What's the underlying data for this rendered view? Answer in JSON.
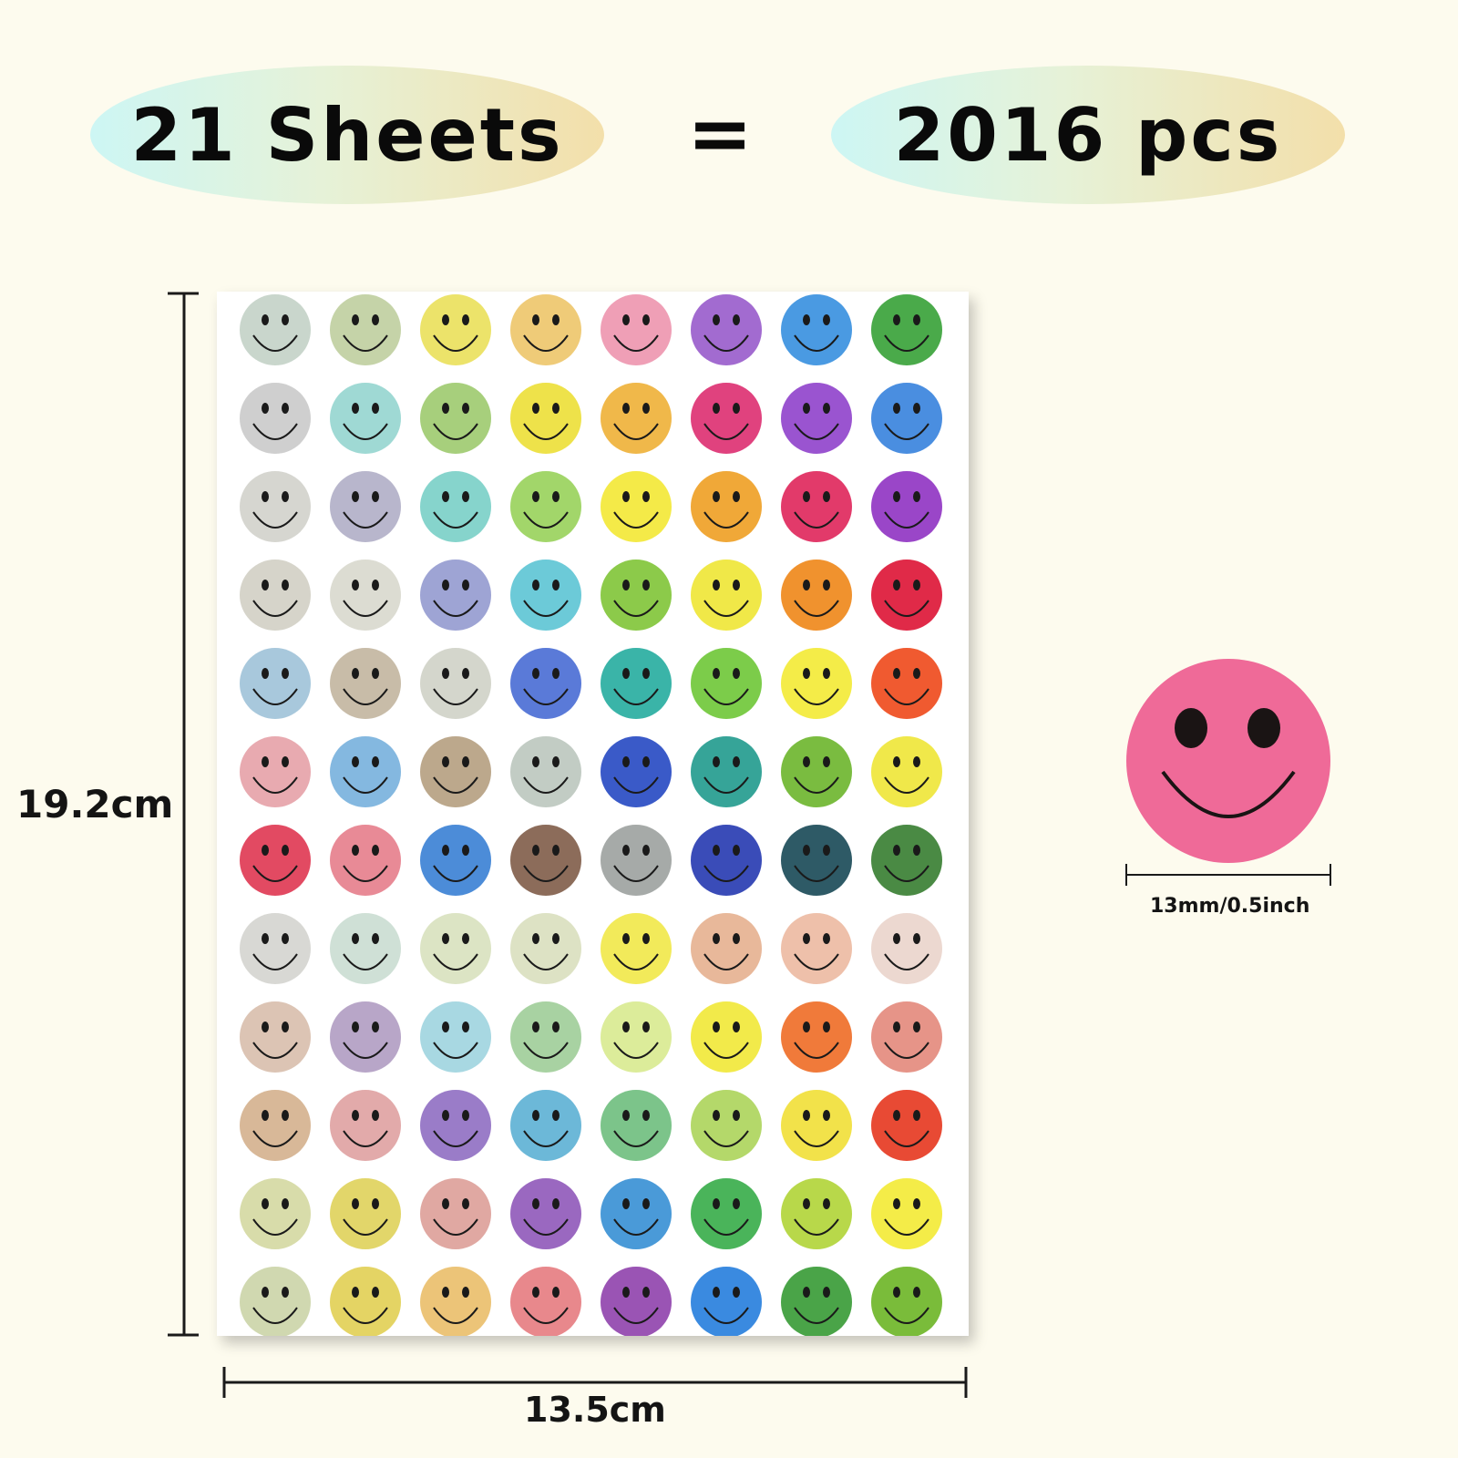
{
  "header": {
    "sheets_label": "21 Sheets",
    "equals": "=",
    "pieces_label": "2016 pcs"
  },
  "dimensions": {
    "sheet_height": "19.2cm",
    "sheet_width": "13.5cm",
    "sticker_diameter": "13mm/0.5inch"
  },
  "sticker_sheet": {
    "rows": 12,
    "columns": 8,
    "colors": [
      [
        "#c9d6cc",
        "#c5d3a8",
        "#ece36a",
        "#efcb78",
        "#ef9fb6",
        "#a26bd0",
        "#4a9ae2",
        "#4aaa4a"
      ],
      [
        "#cfcfcf",
        "#9fd9d4",
        "#a7cf7c",
        "#eee24a",
        "#f0b84a",
        "#e0427e",
        "#9a54d0",
        "#4a8ee0"
      ],
      [
        "#d6d6d0",
        "#b8b6cc",
        "#86d4cc",
        "#a2d66a",
        "#f4ea48",
        "#f0a838",
        "#e23a6a",
        "#9a46c8"
      ],
      [
        "#d6d4ca",
        "#dcdcd2",
        "#9ea4d4",
        "#6ccad8",
        "#8cca4a",
        "#f0e848",
        "#f0922e",
        "#e02a48"
      ],
      [
        "#a8c8dc",
        "#c8bca8",
        "#d4d6cc",
        "#5a7ad8",
        "#3ab4a8",
        "#7ccc4a",
        "#f4ec48",
        "#f05a30"
      ],
      [
        "#e8aab0",
        "#84b8e0",
        "#bca88c",
        "#c2ccc4",
        "#3a5ac8",
        "#36a498",
        "#7abc40",
        "#f0e84a"
      ],
      [
        "#e24a62",
        "#e88a96",
        "#4c8cd8",
        "#8c6c5a",
        "#a6aaa8",
        "#3a4cb8",
        "#2e5a66",
        "#4a8a44"
      ],
      [
        "#d8d8d4",
        "#cfe0d6",
        "#dce4c4",
        "#dde2c4",
        "#f2ea5a",
        "#e8b89a",
        "#eec0aa",
        "#ecd8d0"
      ],
      [
        "#dcc4b4",
        "#b8a6c8",
        "#a8d8e2",
        "#a8d2a2",
        "#dcec9a",
        "#f2ea4a",
        "#f07a3a",
        "#e69488"
      ],
      [
        "#d8b898",
        "#e2aaaa",
        "#9a7cc8",
        "#6cb8d8",
        "#7cc48a",
        "#b4d86a",
        "#f2e24a",
        "#e84a34"
      ],
      [
        "#d8dcaa",
        "#e2d66a",
        "#e0a8a2",
        "#9a68c0",
        "#4a9ad8",
        "#4ab45a",
        "#b8d84a",
        "#f4ec48"
      ],
      [
        "#d0d8b0",
        "#e4d464",
        "#ecc478",
        "#e8888c",
        "#9a54b4",
        "#3a8ae0",
        "#4aa448",
        "#7abc3a"
      ]
    ]
  },
  "large_sticker": {
    "color": "#ef6a98"
  }
}
